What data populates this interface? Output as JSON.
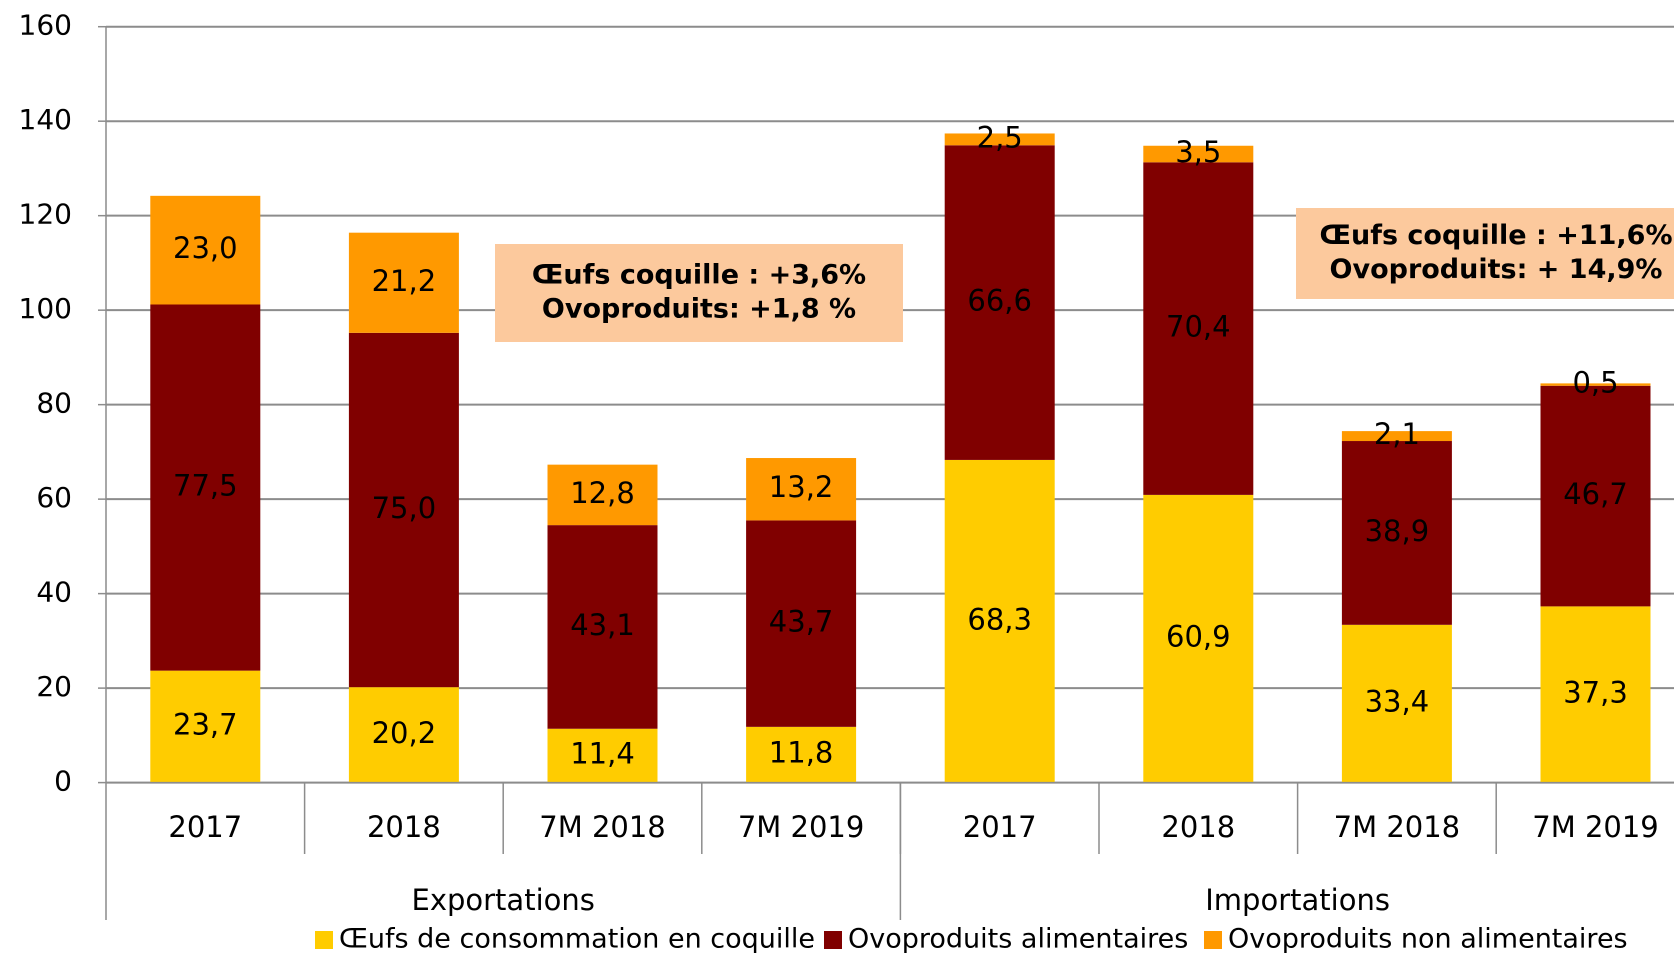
{
  "chart_data": {
    "type": "stacked_bar",
    "categories": [
      "2017",
      "2018",
      "7M 2018",
      "7M 2019",
      "2017",
      "2018",
      "7M 2018",
      "7M 2019"
    ],
    "groups": [
      {
        "name": "Exportations",
        "size": 4
      },
      {
        "name": "Importations",
        "size": 4
      }
    ],
    "series": [
      {
        "name": "Œufs de consommation en coquille",
        "color": "#ffcc00",
        "values": [
          23.7,
          20.2,
          11.4,
          11.8,
          68.3,
          60.9,
          33.4,
          37.3
        ],
        "value_labels": [
          "23,7",
          "20,2",
          "11,4",
          "11,8",
          "68,3",
          "60,9",
          "33,4",
          "37,3"
        ]
      },
      {
        "name": "Ovoproduits alimentaires",
        "color": "#800000",
        "values": [
          77.5,
          75.0,
          43.1,
          43.7,
          66.6,
          70.4,
          38.9,
          46.7
        ],
        "value_labels": [
          "77,5",
          "75,0",
          "43,1",
          "43,7",
          "66,6",
          "70,4",
          "38,9",
          "46,7"
        ]
      },
      {
        "name": "Ovoproduits non alimentaires",
        "color": "#ff9900",
        "values": [
          23.0,
          21.2,
          12.8,
          13.2,
          2.5,
          3.5,
          2.1,
          0.5
        ],
        "value_labels": [
          "23,0",
          "21,2",
          "12,8",
          "13,2",
          "2,5",
          "3,5",
          "2,1",
          "0,5"
        ]
      }
    ],
    "annotations": [
      {
        "lines": [
          "Œufs coquille : +3,6%",
          "Ovoproduits: +1,8 %"
        ],
        "color": "#fcc99d"
      },
      {
        "lines": [
          "Œufs coquille : +11,6%",
          "Ovoproduits: + 14,9%"
        ],
        "color": "#fcc99d"
      }
    ],
    "ylim": [
      0,
      160
    ],
    "yticks": [
      0,
      20,
      40,
      60,
      80,
      100,
      120,
      140,
      160
    ],
    "grid": true,
    "legend": "bottom"
  }
}
